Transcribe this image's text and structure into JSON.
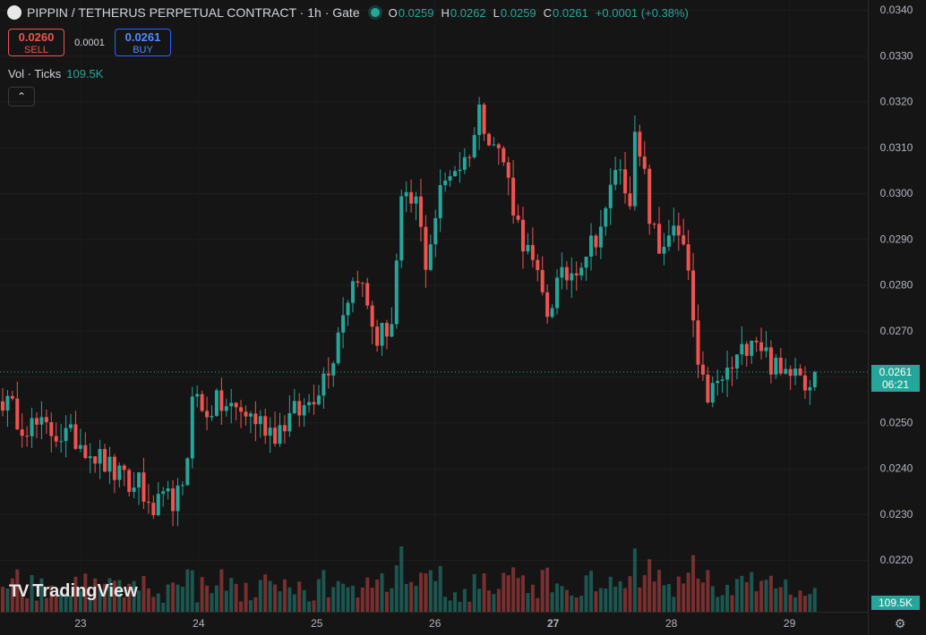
{
  "header": {
    "title": "PIPPIN / TETHERUS PERPETUAL CONTRACT · 1h · Gate",
    "ohlc": [
      {
        "k": "O",
        "v": "0.0259"
      },
      {
        "k": "H",
        "v": "0.0262"
      },
      {
        "k": "L",
        "v": "0.0259"
      },
      {
        "k": "C",
        "v": "0.0261"
      }
    ],
    "change": "+0.0001 (+0.38%)"
  },
  "trade": {
    "sell_price": "0.0260",
    "sell_label": "SELL",
    "spread": "0.0001",
    "buy_price": "0.0261",
    "buy_label": "BUY"
  },
  "volume_legend": {
    "label": "Vol · Ticks",
    "value": "109.5K"
  },
  "collapse_icon": "chevron-up-icon",
  "branding": {
    "name": "TradingView",
    "mark": "TV"
  },
  "price_tag": {
    "price": "0.0261",
    "countdown": "06:21"
  },
  "volume_tag": "109.5K",
  "colors": {
    "up": "#26a69a",
    "down": "#ef5350",
    "background": "#151515",
    "grid": "#222222"
  },
  "chart_data": {
    "type": "candlestick",
    "interval": "1h",
    "y_ticks": [
      "0.0340",
      "0.0330",
      "0.0320",
      "0.0310",
      "0.0300",
      "0.0290",
      "0.0280",
      "0.0270",
      "0.0260",
      "0.0250",
      "0.0240",
      "0.0230",
      "0.0220"
    ],
    "ylim": [
      0.0212,
      0.034
    ],
    "x_ticks": [
      "23",
      "24",
      "25",
      "26",
      "27",
      "28",
      "29"
    ],
    "last_price": 0.0261,
    "keypoints": [
      [
        0,
        0.0255
      ],
      [
        4,
        0.025
      ],
      [
        10,
        0.0248
      ],
      [
        16,
        0.0246
      ],
      [
        22,
        0.024
      ],
      [
        27,
        0.0235
      ],
      [
        28,
        0.0239
      ],
      [
        30,
        0.023
      ],
      [
        34,
        0.0233
      ],
      [
        37,
        0.0234
      ],
      [
        38,
        0.0243
      ],
      [
        39,
        0.0258
      ],
      [
        41,
        0.0252
      ],
      [
        44,
        0.0254
      ],
      [
        50,
        0.0252
      ],
      [
        56,
        0.0248
      ],
      [
        60,
        0.0252
      ],
      [
        62,
        0.0253
      ],
      [
        65,
        0.0258
      ],
      [
        68,
        0.0265
      ],
      [
        70,
        0.0275
      ],
      [
        73,
        0.0283
      ],
      [
        75,
        0.0275
      ],
      [
        77,
        0.0268
      ],
      [
        80,
        0.0272
      ],
      [
        82,
        0.0297
      ],
      [
        85,
        0.0298
      ],
      [
        87,
        0.0285
      ],
      [
        90,
        0.03
      ],
      [
        92,
        0.0305
      ],
      [
        95,
        0.0307
      ],
      [
        97,
        0.0313
      ],
      [
        98,
        0.0318
      ],
      [
        101,
        0.0311
      ],
      [
        103,
        0.0307
      ],
      [
        106,
        0.0293
      ],
      [
        109,
        0.0284
      ],
      [
        112,
        0.0274
      ],
      [
        114,
        0.028
      ],
      [
        117,
        0.0283
      ],
      [
        121,
        0.0289
      ],
      [
        124,
        0.0295
      ],
      [
        126,
        0.0306
      ],
      [
        129,
        0.03
      ],
      [
        130,
        0.0311
      ],
      [
        132,
        0.0303
      ],
      [
        133,
        0.0295
      ],
      [
        135,
        0.0287
      ],
      [
        137,
        0.0292
      ],
      [
        139,
        0.029
      ],
      [
        141,
        0.0283
      ],
      [
        143,
        0.026
      ],
      [
        145,
        0.0256
      ],
      [
        147,
        0.0258
      ],
      [
        150,
        0.0262
      ],
      [
        152,
        0.0265
      ],
      [
        154,
        0.027
      ],
      [
        156,
        0.0267
      ],
      [
        158,
        0.0263
      ],
      [
        160,
        0.026
      ],
      [
        163,
        0.0264
      ],
      [
        165,
        0.0259
      ],
      [
        167,
        0.0261
      ]
    ],
    "volume_max": 109500
  }
}
